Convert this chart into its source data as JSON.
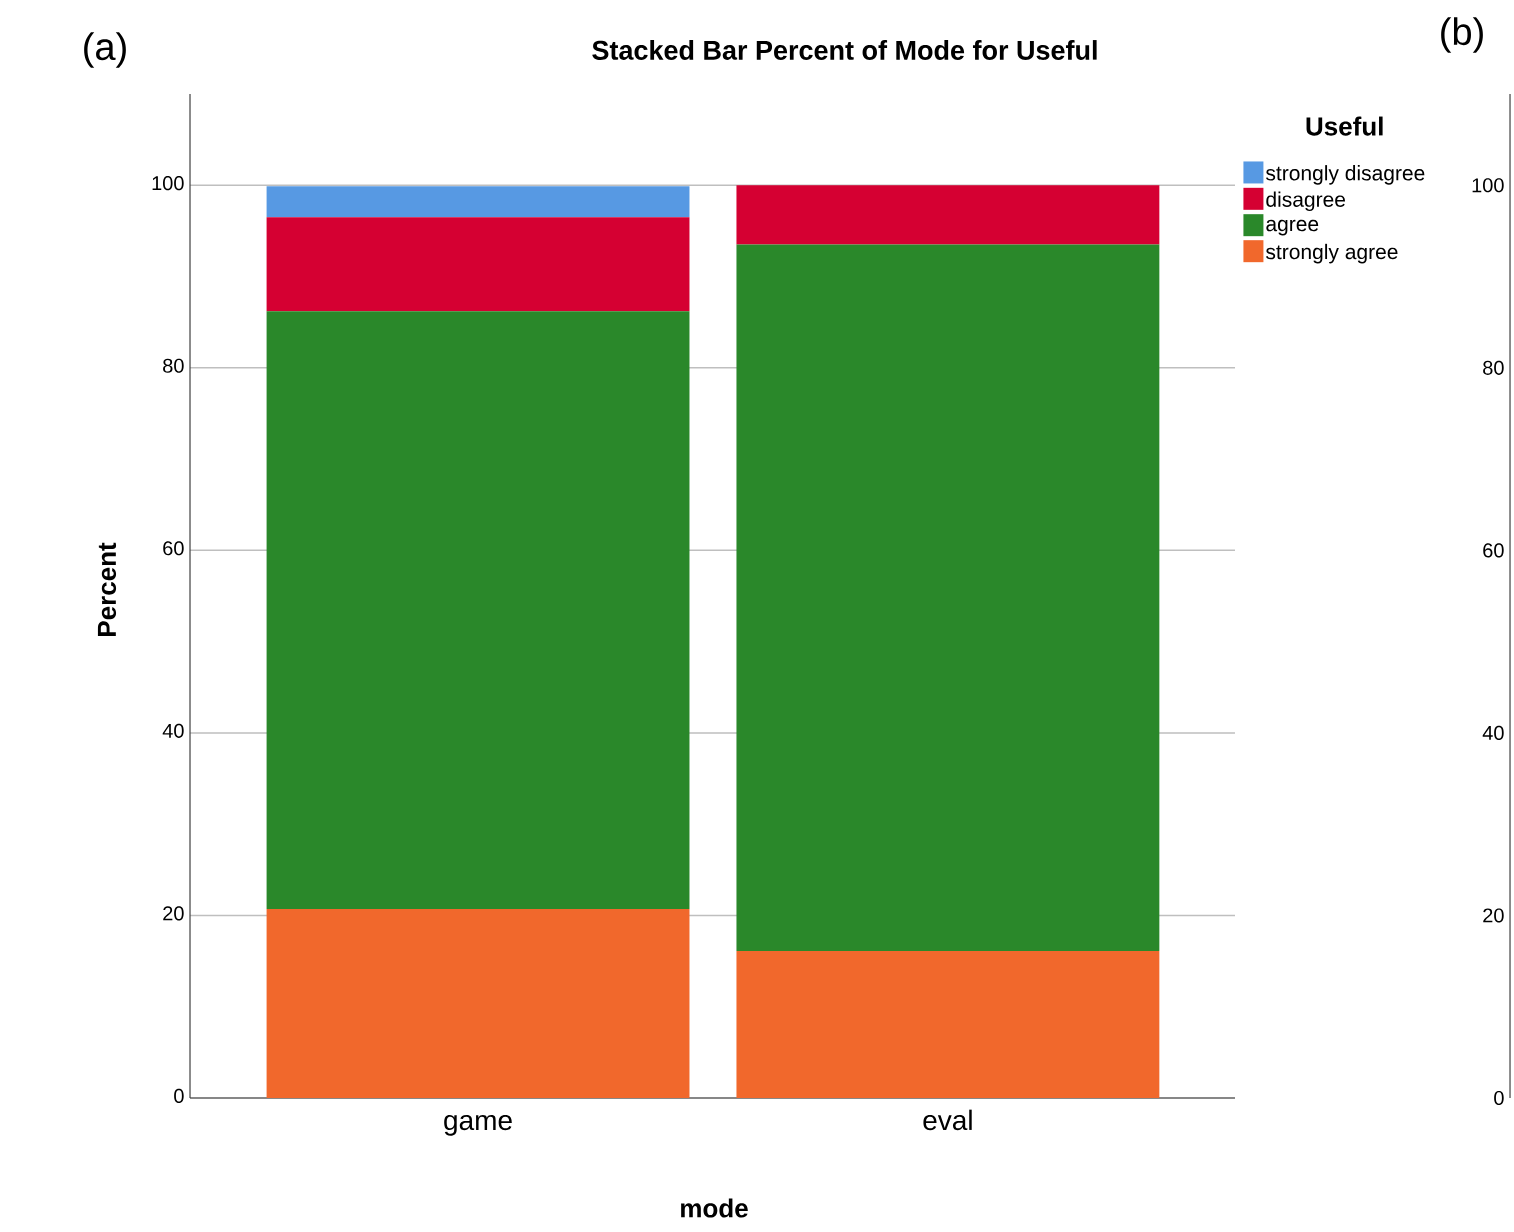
{
  "chart_data": {
    "type": "bar",
    "title": "Stacked Bar Percent of Mode for Useful",
    "xlabel": "mode",
    "ylabel": "Percent",
    "legend_title": "Useful",
    "annotations": [
      "(a)",
      "(b)"
    ],
    "categories": [
      "game",
      "eval"
    ],
    "stacked": true,
    "ylim": [
      0,
      110
    ],
    "yticks": [
      0,
      20,
      40,
      60,
      80,
      100
    ],
    "y2lim": [
      0,
      110
    ],
    "y2ticks": [
      0,
      20,
      40,
      60,
      80,
      100
    ],
    "grid": "y",
    "legend": "top right",
    "series": [
      {
        "name": "strongly agree",
        "color": "#f1682c",
        "values": [
          20.7,
          16.1
        ]
      },
      {
        "name": "agree",
        "color": "#2a882a",
        "values": [
          65.5,
          77.4
        ]
      },
      {
        "name": "disagree",
        "color": "#d50032",
        "values": [
          10.3,
          6.5
        ]
      },
      {
        "name": "strongly disagree",
        "color": "#5799e3",
        "values": [
          3.4,
          0
        ]
      }
    ]
  }
}
